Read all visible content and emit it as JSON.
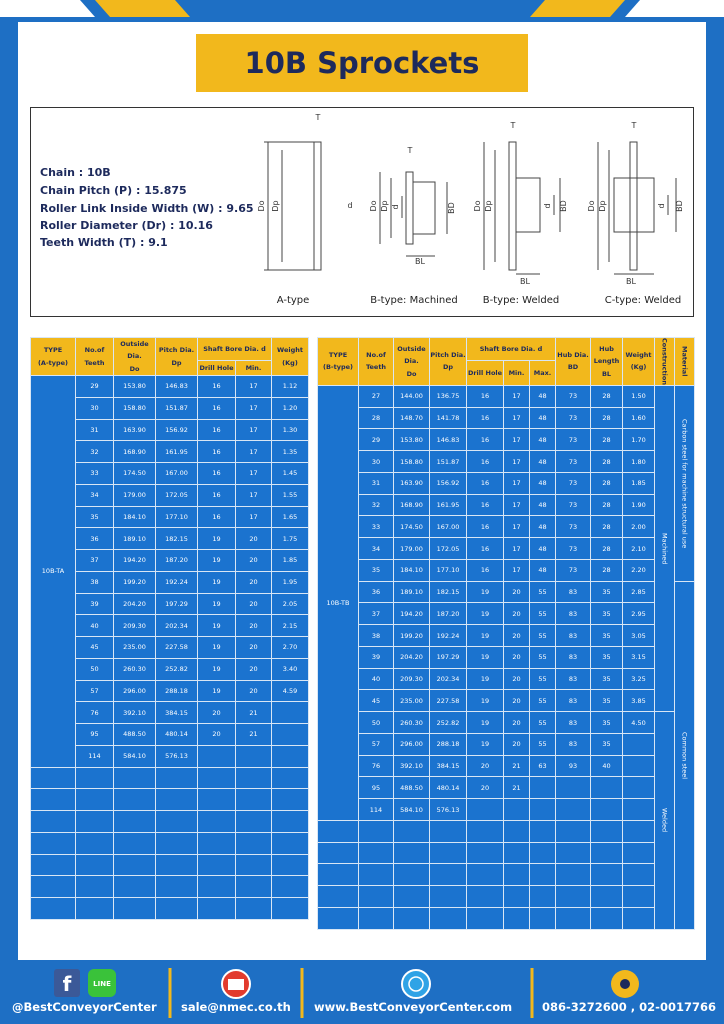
{
  "header": {
    "title": "10B Sprockets"
  },
  "specs": [
    "Chain : 10B",
    "Chain Pitch (P) : 15.875",
    "Roller Link Inside Width (W) : 9.65",
    "Roller Diameter (Dr) : 10.16",
    "Teeth Width (T) : 9.1"
  ],
  "diagrams": [
    {
      "caption": "A-type",
      "labels": [
        "T",
        "Do",
        "Dp",
        "d"
      ]
    },
    {
      "caption": "B-type: Machined",
      "labels": [
        "T",
        "Do",
        "Dp",
        "d",
        "BD",
        "BL"
      ]
    },
    {
      "caption": "B-type: Welded",
      "labels": [
        "T",
        "Do",
        "Dp",
        "d",
        "BD",
        "BL"
      ]
    },
    {
      "caption": "C-type: Welded",
      "labels": [
        "T",
        "Do",
        "Dp",
        "d",
        "BD",
        "BL"
      ]
    }
  ],
  "tables": [
    {
      "columns": [
        [
          "TYPE",
          "(A-type)"
        ],
        [
          "No.of",
          "Teeth"
        ],
        [
          "Outside",
          "Dia.",
          "Do"
        ],
        [
          "Pitch Dia.",
          "Dp"
        ],
        [
          "Drill Hole"
        ],
        [
          "Min."
        ],
        [
          "Weight",
          "(Kg)"
        ]
      ],
      "group": "Shaft Bore Dia. d",
      "type_label": "10B-TA",
      "rows": [
        [
          "29",
          "153.80",
          "146.83",
          "16",
          "17",
          "1.12"
        ],
        [
          "30",
          "158.80",
          "151.87",
          "16",
          "17",
          "1.20"
        ],
        [
          "31",
          "163.90",
          "156.92",
          "16",
          "17",
          "1.30"
        ],
        [
          "32",
          "168.90",
          "161.95",
          "16",
          "17",
          "1.35"
        ],
        [
          "33",
          "174.50",
          "167.00",
          "16",
          "17",
          "1.45"
        ],
        [
          "34",
          "179.00",
          "172.05",
          "16",
          "17",
          "1.55"
        ],
        [
          "35",
          "184.10",
          "177.10",
          "16",
          "17",
          "1.65"
        ],
        [
          "36",
          "189.10",
          "182.15",
          "19",
          "20",
          "1.75"
        ],
        [
          "37",
          "194.20",
          "187.20",
          "19",
          "20",
          "1.85"
        ],
        [
          "38",
          "199.20",
          "192.24",
          "19",
          "20",
          "1.95"
        ],
        [
          "39",
          "204.20",
          "197.29",
          "19",
          "20",
          "2.05"
        ],
        [
          "40",
          "209.30",
          "202.34",
          "19",
          "20",
          "2.15"
        ],
        [
          "45",
          "235.00",
          "227.58",
          "19",
          "20",
          "2.70"
        ],
        [
          "50",
          "260.30",
          "252.82",
          "19",
          "20",
          "3.40"
        ],
        [
          "57",
          "296.00",
          "288.18",
          "19",
          "20",
          "4.59"
        ],
        [
          "76",
          "392.10",
          "384.15",
          "20",
          "21",
          null
        ],
        [
          "95",
          "488.50",
          "480.14",
          "20",
          "21",
          null
        ],
        [
          "114",
          "584.10",
          "576.13",
          null,
          null,
          null
        ]
      ]
    },
    {
      "columns": [
        [
          "TYPE",
          "(B-type)"
        ],
        [
          "No.of",
          "Teeth"
        ],
        [
          "Outside",
          "Dia.",
          "Do"
        ],
        [
          "Pitch Dia.",
          "Dp"
        ],
        [
          "Drill Hole"
        ],
        [
          "Min."
        ],
        [
          "Max."
        ],
        [
          "Hub Dia.",
          "BD"
        ],
        [
          "Hub",
          "Length",
          "BL"
        ],
        [
          "Weight",
          "(Kg)"
        ],
        [
          "Construction"
        ],
        [
          "Material"
        ]
      ],
      "group": "Shaft Bore Dia. d",
      "type_label": "10B-TB",
      "construction": [
        "Machined",
        "Welded"
      ],
      "material": [
        "Carbon steel for machine structural use",
        "Common steel"
      ],
      "rows": [
        [
          "27",
          "144.00",
          "136.75",
          "16",
          "17",
          "48",
          "73",
          "28",
          "1.50"
        ],
        [
          "28",
          "148.70",
          "141.78",
          "16",
          "17",
          "48",
          "73",
          "28",
          "1.60"
        ],
        [
          "29",
          "153.80",
          "146.83",
          "16",
          "17",
          "48",
          "73",
          "28",
          "1.70"
        ],
        [
          "30",
          "158.80",
          "151.87",
          "16",
          "17",
          "48",
          "73",
          "28",
          "1.80"
        ],
        [
          "31",
          "163.90",
          "156.92",
          "16",
          "17",
          "48",
          "73",
          "28",
          "1.85"
        ],
        [
          "32",
          "168.90",
          "161.95",
          "16",
          "17",
          "48",
          "73",
          "28",
          "1.90"
        ],
        [
          "33",
          "174.50",
          "167.00",
          "16",
          "17",
          "48",
          "73",
          "28",
          "2.00"
        ],
        [
          "34",
          "179.00",
          "172.05",
          "16",
          "17",
          "48",
          "73",
          "28",
          "2.10"
        ],
        [
          "35",
          "184.10",
          "177.10",
          "16",
          "17",
          "48",
          "73",
          "28",
          "2.20"
        ],
        [
          "36",
          "189.10",
          "182.15",
          "19",
          "20",
          "55",
          "83",
          "35",
          "2.85"
        ],
        [
          "37",
          "194.20",
          "187.20",
          "19",
          "20",
          "55",
          "83",
          "35",
          "2.95"
        ],
        [
          "38",
          "199.20",
          "192.24",
          "19",
          "20",
          "55",
          "83",
          "35",
          "3.05"
        ],
        [
          "39",
          "204.20",
          "197.29",
          "19",
          "20",
          "55",
          "83",
          "35",
          "3.15"
        ],
        [
          "40",
          "209.30",
          "202.34",
          "19",
          "20",
          "55",
          "83",
          "35",
          "3.25"
        ],
        [
          "45",
          "235.00",
          "227.58",
          "19",
          "20",
          "55",
          "83",
          "35",
          "3.85"
        ],
        [
          "50",
          "260.30",
          "252.82",
          "19",
          "20",
          "55",
          "83",
          "35",
          "4.50"
        ],
        [
          "57",
          "296.00",
          "288.18",
          "19",
          "20",
          "55",
          "83",
          "35",
          null
        ],
        [
          "76",
          "392.10",
          "384.15",
          "20",
          "21",
          "63",
          "93",
          "40",
          null
        ],
        [
          "95",
          "488.50",
          "480.14",
          "20",
          "21",
          null,
          null,
          null,
          null
        ],
        [
          "114",
          "584.10",
          "576.13",
          null,
          null,
          null,
          null,
          null,
          null
        ]
      ]
    }
  ],
  "footer": {
    "line_icon": "LINE",
    "facebook": "@BestConveyorCenter",
    "email": "sale@nmec.co.th",
    "website": "www.BestConveyorCenter.com",
    "phone": "086-3272600 , 02-0017766"
  }
}
